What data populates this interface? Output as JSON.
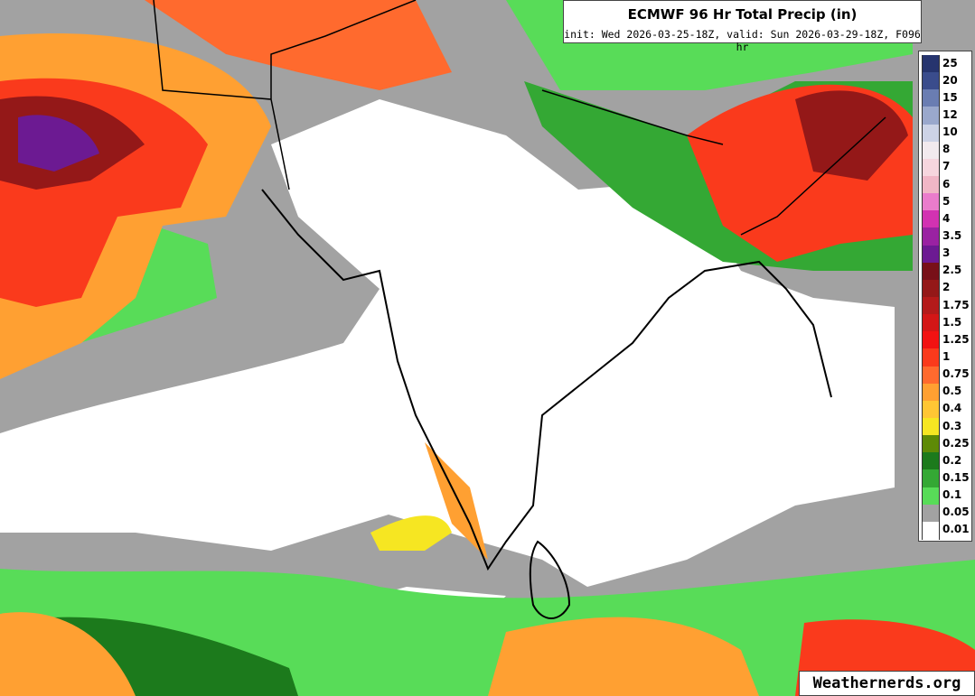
{
  "header": {
    "title": "ECMWF 96 Hr Total Precip (in)",
    "subtitle": "init: Wed 2026-03-25-18Z, valid: Sun 2026-03-29-18Z, F096 hr"
  },
  "legend": {
    "labels": [
      25,
      20,
      15,
      12,
      10,
      8,
      7,
      6,
      5,
      4,
      3.5,
      3,
      2.5,
      2,
      1.75,
      1.5,
      1.25,
      1,
      0.75,
      0.5,
      0.4,
      0.3,
      0.25,
      0.2,
      0.15,
      0.1,
      0.05,
      0.01
    ],
    "colors": [
      "#26346e",
      "#3a4c8c",
      "#6a7db2",
      "#9aa8cc",
      "#cdd3e6",
      "#f2eaee",
      "#f6d6de",
      "#f0b6c6",
      "#ea7ccc",
      "#d232b2",
      "#9a22a2",
      "#6c1a92",
      "#781018",
      "#941818",
      "#b41a1a",
      "#d41616",
      "#f21212",
      "#fa3a1c",
      "#ff6a2e",
      "#ffa032",
      "#ffc634",
      "#f6e622",
      "#5e8a06",
      "#1c7a1c",
      "#34a834",
      "#58dc58",
      "#a2a2a2",
      "#ffffff"
    ]
  },
  "footer": {
    "watermark": "Weathernerds.org"
  }
}
